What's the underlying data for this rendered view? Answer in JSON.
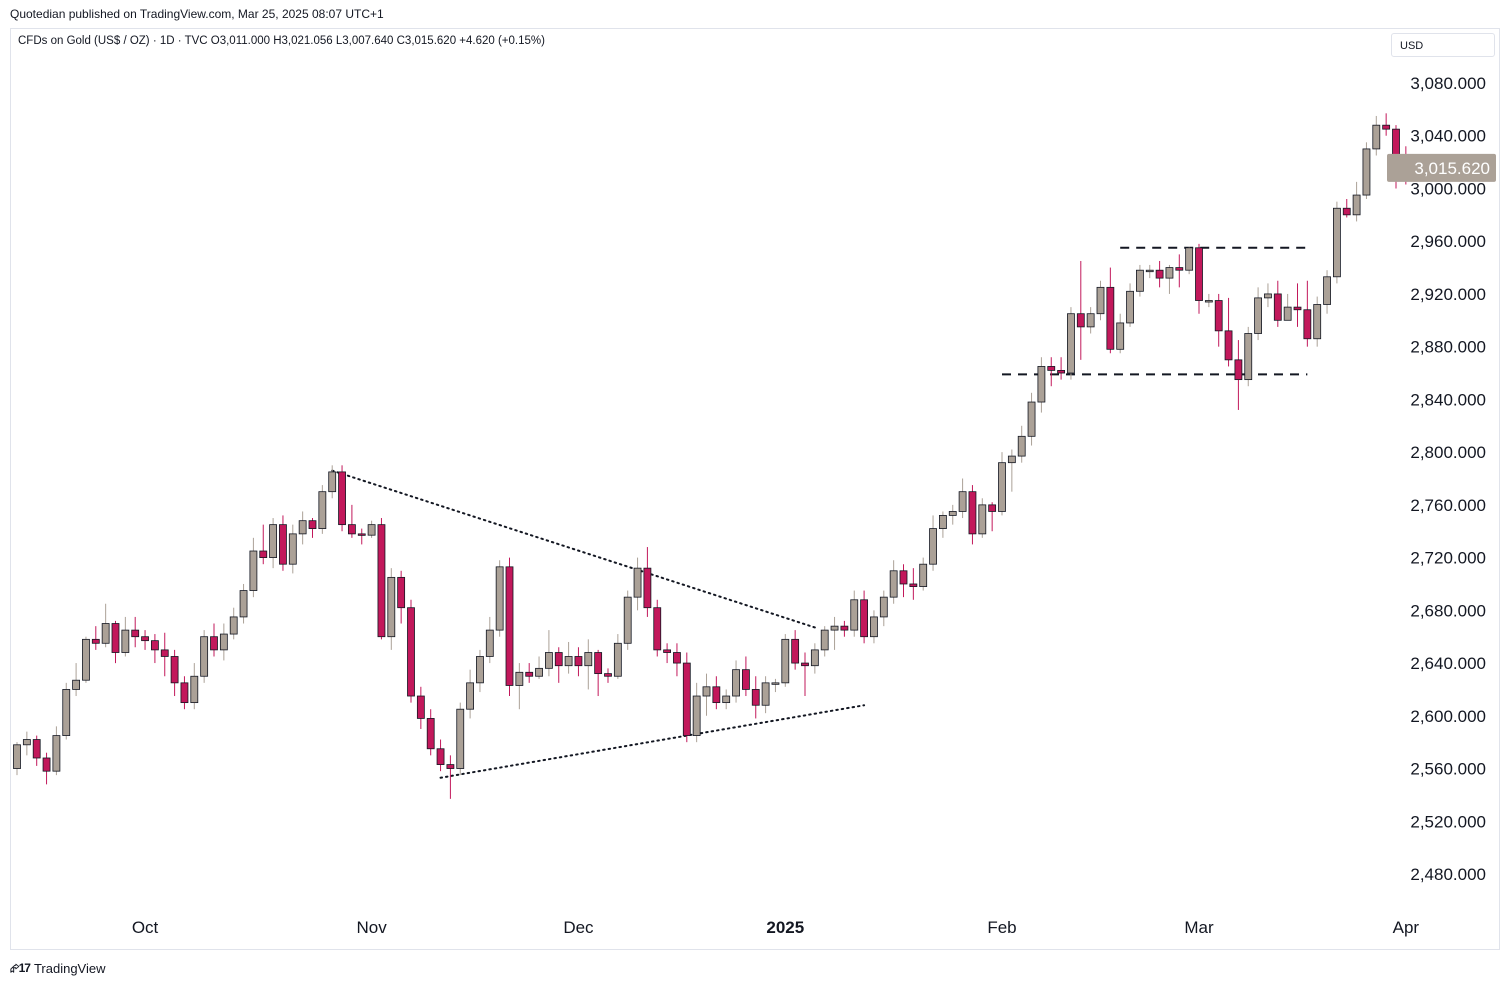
{
  "header": {
    "published": "Quotedian published on TradingView.com, Mar 25, 2025 08:07 UTC+1",
    "legend": "CFDs on Gold (US$ / OZ) · 1D · TVC   O3,011.000   H3,021.056   L3,007.640   C3,015.620   +4.620 (+0.15%)",
    "currency": "USD"
  },
  "footer": {
    "brand": "TradingView"
  },
  "colors": {
    "up": "#aba197",
    "down": "#c2185b",
    "last_price_bg": "#aba197",
    "frame": "#e0e3eb"
  },
  "chart_data": {
    "type": "candlestick",
    "title": "CFDs on Gold (US$ / OZ)",
    "interval": "1D",
    "source": "TVC",
    "ylim": [
      2455,
      3100
    ],
    "y_ticks": [
      "3,080.000",
      "3,040.000",
      "3,000.000",
      "2,960.000",
      "2,920.000",
      "2,880.000",
      "2,840.000",
      "2,800.000",
      "2,760.000",
      "2,720.000",
      "2,680.000",
      "2,640.000",
      "2,600.000",
      "2,560.000",
      "2,520.000",
      "2,480.000"
    ],
    "y_tick_values": [
      3080,
      3040,
      3000,
      2960,
      2920,
      2880,
      2840,
      2800,
      2760,
      2720,
      2680,
      2640,
      2600,
      2560,
      2520,
      2480
    ],
    "x_ticks": [
      {
        "label": "Oct",
        "bar": 13,
        "bold": false
      },
      {
        "label": "Nov",
        "bar": 36,
        "bold": false
      },
      {
        "label": "Dec",
        "bar": 57,
        "bold": false
      },
      {
        "label": "2025",
        "bar": 78,
        "bold": true
      },
      {
        "label": "Feb",
        "bar": 100,
        "bold": false
      },
      {
        "label": "Mar",
        "bar": 120,
        "bold": false
      },
      {
        "label": "Apr",
        "bar": 141,
        "bold": false
      }
    ],
    "last_price": 3015.62,
    "last_price_label": "3,015.620",
    "candles": [
      [
        2560,
        2580,
        2555,
        2578
      ],
      [
        2578,
        2588,
        2570,
        2582
      ],
      [
        2582,
        2585,
        2562,
        2568
      ],
      [
        2568,
        2572,
        2548,
        2558
      ],
      [
        2558,
        2592,
        2555,
        2585
      ],
      [
        2585,
        2625,
        2582,
        2620
      ],
      [
        2620,
        2640,
        2615,
        2627
      ],
      [
        2627,
        2660,
        2625,
        2658
      ],
      [
        2658,
        2668,
        2650,
        2655
      ],
      [
        2655,
        2685,
        2652,
        2670
      ],
      [
        2670,
        2672,
        2640,
        2648
      ],
      [
        2648,
        2675,
        2645,
        2665
      ],
      [
        2665,
        2675,
        2652,
        2660
      ],
      [
        2660,
        2665,
        2650,
        2657
      ],
      [
        2657,
        2662,
        2640,
        2650
      ],
      [
        2650,
        2663,
        2630,
        2645
      ],
      [
        2645,
        2650,
        2615,
        2625
      ],
      [
        2625,
        2630,
        2605,
        2610
      ],
      [
        2610,
        2640,
        2605,
        2630
      ],
      [
        2630,
        2665,
        2625,
        2660
      ],
      [
        2660,
        2670,
        2645,
        2650
      ],
      [
        2650,
        2670,
        2642,
        2662
      ],
      [
        2662,
        2682,
        2658,
        2675
      ],
      [
        2675,
        2700,
        2670,
        2695
      ],
      [
        2695,
        2735,
        2690,
        2725
      ],
      [
        2725,
        2745,
        2715,
        2720
      ],
      [
        2720,
        2750,
        2712,
        2745
      ],
      [
        2745,
        2752,
        2710,
        2715
      ],
      [
        2715,
        2745,
        2708,
        2738
      ],
      [
        2738,
        2755,
        2730,
        2748
      ],
      [
        2748,
        2750,
        2735,
        2742
      ],
      [
        2742,
        2775,
        2738,
        2770
      ],
      [
        2770,
        2790,
        2765,
        2785
      ],
      [
        2785,
        2790,
        2740,
        2745
      ],
      [
        2745,
        2760,
        2735,
        2738
      ],
      [
        2738,
        2742,
        2730,
        2737
      ],
      [
        2737,
        2748,
        2735,
        2745
      ],
      [
        2745,
        2750,
        2658,
        2660
      ],
      [
        2660,
        2712,
        2650,
        2705
      ],
      [
        2705,
        2710,
        2670,
        2682
      ],
      [
        2682,
        2688,
        2610,
        2615
      ],
      [
        2615,
        2622,
        2590,
        2598
      ],
      [
        2598,
        2605,
        2570,
        2575
      ],
      [
        2575,
        2582,
        2558,
        2563
      ],
      [
        2563,
        2570,
        2537,
        2560
      ],
      [
        2560,
        2610,
        2555,
        2605
      ],
      [
        2605,
        2635,
        2598,
        2625
      ],
      [
        2625,
        2650,
        2618,
        2645
      ],
      [
        2645,
        2675,
        2640,
        2665
      ],
      [
        2665,
        2718,
        2660,
        2713
      ],
      [
        2713,
        2720,
        2615,
        2623
      ],
      [
        2623,
        2640,
        2605,
        2633
      ],
      [
        2633,
        2640,
        2625,
        2630
      ],
      [
        2630,
        2645,
        2628,
        2636
      ],
      [
        2636,
        2665,
        2630,
        2648
      ],
      [
        2648,
        2652,
        2625,
        2638
      ],
      [
        2638,
        2656,
        2632,
        2645
      ],
      [
        2645,
        2652,
        2630,
        2638
      ],
      [
        2638,
        2658,
        2620,
        2648
      ],
      [
        2648,
        2650,
        2615,
        2632
      ],
      [
        2632,
        2636,
        2625,
        2630
      ],
      [
        2630,
        2662,
        2628,
        2655
      ],
      [
        2655,
        2695,
        2650,
        2690
      ],
      [
        2690,
        2720,
        2680,
        2712
      ],
      [
        2712,
        2728,
        2675,
        2682
      ],
      [
        2682,
        2688,
        2645,
        2650
      ],
      [
        2650,
        2655,
        2640,
        2648
      ],
      [
        2648,
        2655,
        2630,
        2640
      ],
      [
        2640,
        2648,
        2580,
        2585
      ],
      [
        2585,
        2625,
        2580,
        2615
      ],
      [
        2615,
        2632,
        2600,
        2622
      ],
      [
        2622,
        2630,
        2605,
        2610
      ],
      [
        2610,
        2620,
        2605,
        2615
      ],
      [
        2615,
        2642,
        2610,
        2635
      ],
      [
        2635,
        2645,
        2615,
        2620
      ],
      [
        2620,
        2630,
        2598,
        2608
      ],
      [
        2608,
        2630,
        2602,
        2625
      ],
      [
        2625,
        2628,
        2618,
        2625
      ],
      [
        2625,
        2662,
        2622,
        2658
      ],
      [
        2658,
        2665,
        2635,
        2640
      ],
      [
        2640,
        2648,
        2615,
        2638
      ],
      [
        2638,
        2655,
        2632,
        2650
      ],
      [
        2650,
        2668,
        2645,
        2665
      ],
      [
        2665,
        2675,
        2650,
        2668
      ],
      [
        2668,
        2672,
        2660,
        2665
      ],
      [
        2665,
        2695,
        2660,
        2688
      ],
      [
        2688,
        2695,
        2655,
        2660
      ],
      [
        2660,
        2680,
        2655,
        2675
      ],
      [
        2675,
        2695,
        2668,
        2690
      ],
      [
        2690,
        2718,
        2685,
        2710
      ],
      [
        2710,
        2715,
        2690,
        2700
      ],
      [
        2700,
        2712,
        2688,
        2698
      ],
      [
        2698,
        2720,
        2695,
        2715
      ],
      [
        2715,
        2752,
        2710,
        2742
      ],
      [
        2742,
        2755,
        2735,
        2752
      ],
      [
        2752,
        2760,
        2745,
        2755
      ],
      [
        2755,
        2780,
        2750,
        2770
      ],
      [
        2770,
        2775,
        2730,
        2738
      ],
      [
        2738,
        2765,
        2735,
        2760
      ],
      [
        2760,
        2762,
        2740,
        2755
      ],
      [
        2755,
        2800,
        2752,
        2792
      ],
      [
        2792,
        2802,
        2770,
        2797
      ],
      [
        2797,
        2820,
        2792,
        2812
      ],
      [
        2812,
        2845,
        2805,
        2838
      ],
      [
        2838,
        2872,
        2830,
        2865
      ],
      [
        2865,
        2872,
        2850,
        2862
      ],
      [
        2862,
        2872,
        2855,
        2860
      ],
      [
        2860,
        2910,
        2855,
        2905
      ],
      [
        2905,
        2945,
        2870,
        2895
      ],
      [
        2895,
        2910,
        2890,
        2905
      ],
      [
        2905,
        2930,
        2900,
        2925
      ],
      [
        2925,
        2940,
        2875,
        2878
      ],
      [
        2878,
        2905,
        2875,
        2898
      ],
      [
        2898,
        2928,
        2895,
        2922
      ],
      [
        2922,
        2942,
        2918,
        2938
      ],
      [
        2938,
        2942,
        2932,
        2938
      ],
      [
        2938,
        2945,
        2925,
        2932
      ],
      [
        2932,
        2942,
        2920,
        2940
      ],
      [
        2940,
        2950,
        2925,
        2938
      ],
      [
        2938,
        2956,
        2935,
        2955
      ],
      [
        2955,
        2958,
        2905,
        2915
      ],
      [
        2915,
        2920,
        2910,
        2915
      ],
      [
        2915,
        2920,
        2880,
        2892
      ],
      [
        2892,
        2917,
        2865,
        2870
      ],
      [
        2870,
        2885,
        2832,
        2855
      ],
      [
        2855,
        2895,
        2850,
        2890
      ],
      [
        2890,
        2925,
        2885,
        2917
      ],
      [
        2917,
        2928,
        2910,
        2920
      ],
      [
        2920,
        2930,
        2895,
        2900
      ],
      [
        2900,
        2920,
        2905,
        2910
      ],
      [
        2910,
        2928,
        2895,
        2908
      ],
      [
        2908,
        2930,
        2880,
        2886
      ],
      [
        2886,
        2918,
        2880,
        2912
      ],
      [
        2912,
        2938,
        2905,
        2933
      ],
      [
        2933,
        2990,
        2928,
        2985
      ],
      [
        2985,
        2992,
        2978,
        2980
      ],
      [
        2980,
        3005,
        2975,
        2995
      ],
      [
        2995,
        3035,
        2992,
        3030
      ],
      [
        3030,
        3055,
        3025,
        3048
      ],
      [
        3048,
        3057,
        3040,
        3045
      ],
      [
        3045,
        3048,
        3000,
        3025
      ],
      [
        3025,
        3032,
        3003,
        3011
      ],
      [
        3011,
        3021.056,
        3007.64,
        3015.62
      ]
    ],
    "annotations": [
      {
        "type": "dotted-line",
        "from": {
          "bar": 32,
          "price": 2786
        },
        "to": {
          "bar": 81,
          "price": 2667
        }
      },
      {
        "type": "dotted-line",
        "from": {
          "bar": 43,
          "price": 2553
        },
        "to": {
          "bar": 86,
          "price": 2608
        }
      },
      {
        "type": "dashed-line",
        "from": {
          "bar": 112,
          "price": 2955
        },
        "to": {
          "bar": 131,
          "price": 2955
        }
      },
      {
        "type": "dashed-line",
        "from": {
          "bar": 100,
          "price": 2859
        },
        "to": {
          "bar": 131,
          "price": 2859
        }
      }
    ]
  }
}
